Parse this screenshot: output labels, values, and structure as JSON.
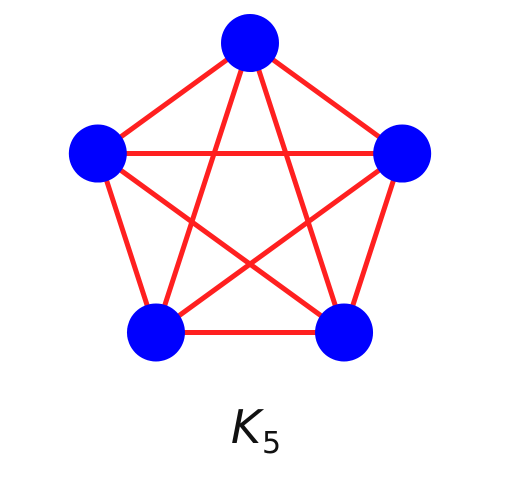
{
  "graph": {
    "node_count": 5,
    "edges": [
      [
        0,
        1
      ],
      [
        0,
        2
      ],
      [
        0,
        3
      ],
      [
        0,
        4
      ],
      [
        1,
        2
      ],
      [
        1,
        3
      ],
      [
        1,
        4
      ],
      [
        2,
        3
      ],
      [
        2,
        4
      ],
      [
        3,
        4
      ]
    ],
    "node_color": "#0000ff",
    "edge_color": "#ff2020"
  },
  "caption": {
    "main": "K",
    "subscript": "5"
  }
}
